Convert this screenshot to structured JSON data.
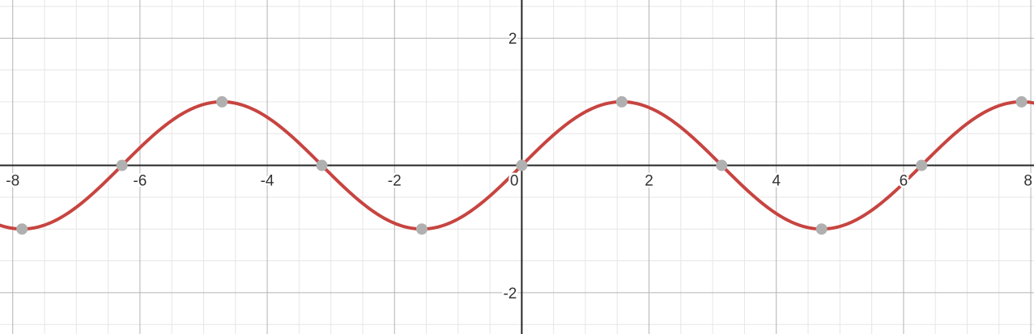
{
  "chart_data": {
    "type": "line",
    "title": "",
    "xlabel": "",
    "ylabel": "",
    "xlim": [
      -8.2,
      8.05
    ],
    "ylim": [
      -2.65,
      2.6
    ],
    "major_step": 2,
    "minor_step": 0.5,
    "grid": true,
    "x_tick_labels": [
      "-8",
      "-6",
      "-4",
      "-2",
      "0",
      "2",
      "4",
      "6",
      "8"
    ],
    "x_tick_values": [
      -8,
      -6,
      -4,
      -2,
      0,
      2,
      4,
      6,
      8
    ],
    "y_tick_labels": [
      "2",
      "-2"
    ],
    "y_tick_values": [
      2,
      -2
    ],
    "series": [
      {
        "function": "sin(x)",
        "color": "#c74440",
        "x_start": -8.2,
        "x_end": 8.05,
        "samples": 400
      }
    ],
    "points": [
      {
        "x": -7.854,
        "y": -1
      },
      {
        "x": -6.283,
        "y": 0
      },
      {
        "x": -4.712,
        "y": 1
      },
      {
        "x": -3.142,
        "y": 0
      },
      {
        "x": -1.571,
        "y": -1
      },
      {
        "x": 0,
        "y": 0
      },
      {
        "x": 1.571,
        "y": 1
      },
      {
        "x": 3.142,
        "y": 0
      },
      {
        "x": 4.712,
        "y": -1
      },
      {
        "x": 6.283,
        "y": 0
      },
      {
        "x": 7.854,
        "y": 1
      }
    ],
    "point_color": "#b0b0b0"
  },
  "colors": {
    "minor_grid": "#e6e6e6",
    "major_grid": "#b3b3b3",
    "axis": "#262626"
  }
}
